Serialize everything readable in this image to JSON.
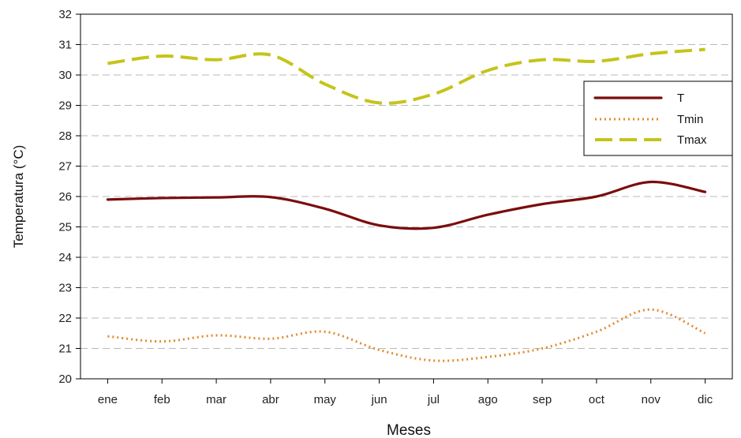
{
  "chart_data": {
    "type": "line",
    "categories": [
      "ene",
      "feb",
      "mar",
      "abr",
      "may",
      "jun",
      "jul",
      "ago",
      "sep",
      "oct",
      "nov",
      "dic"
    ],
    "xlabel": "Meses",
    "ylabel": "Temperatura (°C)",
    "ylim": [
      20,
      32
    ],
    "yticks": [
      20,
      21,
      22,
      23,
      24,
      25,
      26,
      27,
      28,
      29,
      30,
      31,
      32
    ],
    "grid": "horizontal dashed",
    "legend_position": "right",
    "series": [
      {
        "name": "T",
        "color": "#7b0d0d",
        "style": "solid",
        "values": [
          25.9,
          25.95,
          25.97,
          25.98,
          25.6,
          25.05,
          24.97,
          25.4,
          25.75,
          26.0,
          26.48,
          26.15
        ]
      },
      {
        "name": "Tmin",
        "color": "#e28a2b",
        "style": "dotted",
        "values": [
          21.4,
          21.23,
          21.43,
          21.32,
          21.55,
          20.95,
          20.6,
          20.72,
          21.0,
          21.55,
          22.28,
          21.5
        ]
      },
      {
        "name": "Tmax",
        "color": "#c5c41b",
        "style": "dashed",
        "values": [
          30.38,
          30.62,
          30.5,
          30.66,
          29.7,
          29.08,
          29.37,
          30.15,
          30.5,
          30.45,
          30.7,
          30.84
        ]
      }
    ]
  }
}
